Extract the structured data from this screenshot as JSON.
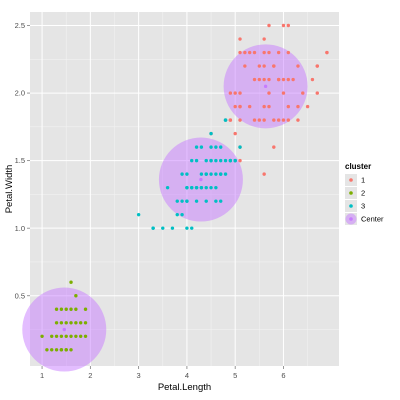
{
  "chart_data": {
    "type": "scatter",
    "xlabel": "Petal.Length",
    "ylabel": "Petal.Width",
    "xlim": [
      0.75,
      7.15
    ],
    "ylim": [
      -0.02,
      2.6
    ],
    "x_ticks": [
      1,
      2,
      3,
      4,
      5,
      6
    ],
    "y_ticks": [
      0.5,
      1.0,
      1.5,
      2.0,
      2.5
    ],
    "x_tick_labels": [
      "1",
      "2",
      "3",
      "4",
      "5",
      "6"
    ],
    "y_tick_labels": [
      "0.5",
      "1.0",
      "1.5",
      "2.0",
      "2.5"
    ],
    "background": "#e5e5e5",
    "gridline_color": "#ffffff",
    "grid": true,
    "legend": {
      "title": "cluster",
      "placement": "right",
      "entries": [
        {
          "label": "1",
          "color": "#f8766d"
        },
        {
          "label": "2",
          "color": "#7cae00"
        },
        {
          "label": "3",
          "color": "#00bfc4"
        },
        {
          "label": "Center",
          "color": "#c77cff"
        }
      ]
    },
    "centers": [
      {
        "x": 1.46,
        "y": 0.25,
        "color": "#c77cff"
      },
      {
        "x": 4.29,
        "y": 1.36,
        "color": "#c77cff"
      },
      {
        "x": 5.63,
        "y": 2.05,
        "color": "#c77cff"
      }
    ],
    "series": [
      {
        "name": "1",
        "color": "#f8766d",
        "points": [
          [
            4.9,
            1.5
          ],
          [
            5.0,
            1.7
          ],
          [
            5.0,
            1.5
          ],
          [
            5.1,
            1.6
          ],
          [
            4.8,
            1.8
          ],
          [
            4.9,
            1.8
          ],
          [
            5.1,
            1.8
          ],
          [
            4.5,
            1.7
          ],
          [
            4.9,
            1.8
          ],
          [
            5.1,
            1.9
          ],
          [
            5.6,
            1.8
          ],
          [
            5.8,
            1.8
          ],
          [
            6.0,
            1.8
          ],
          [
            6.1,
            1.8
          ],
          [
            6.3,
            1.8
          ],
          [
            5.9,
            2.1
          ],
          [
            5.6,
            2.1
          ],
          [
            5.8,
            2.2
          ],
          [
            6.6,
            2.1
          ],
          [
            6.7,
            2.0
          ],
          [
            6.9,
            2.3
          ],
          [
            6.7,
            2.2
          ],
          [
            6.4,
            2.0
          ],
          [
            6.1,
            1.9
          ],
          [
            5.5,
            2.1
          ],
          [
            5.7,
            2.0
          ],
          [
            5.1,
            2.0
          ],
          [
            5.3,
            1.9
          ],
          [
            5.5,
            1.8
          ],
          [
            6.7,
            2.2
          ],
          [
            6.9,
            2.3
          ],
          [
            5.0,
            2.0
          ],
          [
            5.7,
            2.3
          ],
          [
            4.9,
            2.0
          ],
          [
            5.4,
            2.1
          ],
          [
            5.6,
            2.4
          ],
          [
            5.1,
            2.3
          ],
          [
            5.6,
            2.2
          ],
          [
            6.0,
            2.5
          ],
          [
            6.1,
            2.3
          ],
          [
            5.9,
            2.3
          ],
          [
            5.7,
            2.5
          ],
          [
            5.2,
            2.3
          ],
          [
            5.4,
            2.3
          ],
          [
            5.1,
            2.4
          ],
          [
            5.8,
            1.6
          ],
          [
            5.7,
            2.1
          ],
          [
            5.1,
            1.9
          ],
          [
            6.1,
            2.5
          ],
          [
            5.5,
            2.2
          ],
          [
            5.1,
            1.5
          ],
          [
            5.6,
            1.4
          ],
          [
            5.3,
            2.3
          ],
          [
            5.6,
            2.3
          ],
          [
            5.0,
            1.9
          ],
          [
            6.0,
            2.0
          ],
          [
            5.2,
            2.2
          ],
          [
            5.6,
            1.9
          ],
          [
            6.1,
            2.1
          ],
          [
            5.9,
            1.8
          ],
          [
            6.5,
            1.9
          ],
          [
            5.4,
            1.8
          ],
          [
            5.9,
            2.1
          ],
          [
            6.3,
            2.2
          ],
          [
            5.8,
            2.2
          ],
          [
            6.2,
            2.1
          ],
          [
            6.3,
            1.9
          ],
          [
            6.0,
            2.1
          ],
          [
            5.7,
            1.9
          ]
        ]
      },
      {
        "name": "2",
        "color": "#7cae00",
        "points": [
          [
            1.4,
            0.2
          ],
          [
            1.3,
            0.2
          ],
          [
            1.5,
            0.2
          ],
          [
            1.7,
            0.4
          ],
          [
            1.4,
            0.3
          ],
          [
            1.5,
            0.1
          ],
          [
            1.6,
            0.2
          ],
          [
            1.4,
            0.1
          ],
          [
            1.1,
            0.1
          ],
          [
            1.2,
            0.2
          ],
          [
            1.5,
            0.4
          ],
          [
            1.3,
            0.4
          ],
          [
            1.7,
            0.3
          ],
          [
            1.0,
            0.2
          ],
          [
            1.9,
            0.2
          ],
          [
            1.6,
            0.4
          ],
          [
            1.7,
            0.5
          ],
          [
            1.6,
            0.6
          ],
          [
            1.9,
            0.4
          ],
          [
            1.5,
            0.3
          ],
          [
            1.3,
            0.3
          ],
          [
            1.4,
            0.4
          ],
          [
            1.2,
            0.1
          ],
          [
            1.8,
            0.2
          ],
          [
            1.3,
            0.1
          ],
          [
            1.6,
            0.1
          ],
          [
            1.6,
            0.3
          ],
          [
            1.5,
            0.1
          ],
          [
            1.4,
            0.1
          ],
          [
            1.7,
            0.2
          ],
          [
            1.9,
            0.3
          ],
          [
            1.8,
            0.3
          ]
        ]
      },
      {
        "name": "3",
        "color": "#00bfc4",
        "points": [
          [
            4.7,
            1.4
          ],
          [
            4.5,
            1.5
          ],
          [
            4.6,
            1.5
          ],
          [
            4.0,
            1.3
          ],
          [
            4.5,
            1.3
          ],
          [
            4.7,
            1.6
          ],
          [
            3.3,
            1.0
          ],
          [
            4.6,
            1.3
          ],
          [
            3.9,
            1.4
          ],
          [
            3.5,
            1.0
          ],
          [
            4.2,
            1.5
          ],
          [
            4.0,
            1.0
          ],
          [
            4.7,
            1.4
          ],
          [
            3.6,
            1.3
          ],
          [
            4.4,
            1.4
          ],
          [
            4.1,
            1.0
          ],
          [
            4.5,
            1.5
          ],
          [
            3.9,
            1.1
          ],
          [
            4.8,
            1.8
          ],
          [
            4.0,
            1.3
          ],
          [
            4.9,
            1.5
          ],
          [
            4.7,
            1.2
          ],
          [
            4.3,
            1.3
          ],
          [
            4.4,
            1.4
          ],
          [
            4.8,
            1.4
          ],
          [
            4.2,
            1.3
          ],
          [
            3.8,
            1.1
          ],
          [
            3.7,
            1.0
          ],
          [
            3.9,
            1.2
          ],
          [
            5.1,
            1.6
          ],
          [
            4.5,
            1.6
          ],
          [
            4.7,
            1.5
          ],
          [
            4.4,
            1.3
          ],
          [
            4.1,
            1.3
          ],
          [
            4.0,
            1.2
          ],
          [
            4.4,
            1.2
          ],
          [
            4.6,
            1.4
          ],
          [
            4.0,
            1.2
          ],
          [
            3.3,
            1.0
          ],
          [
            4.2,
            1.2
          ],
          [
            4.2,
            1.3
          ],
          [
            4.3,
            1.3
          ],
          [
            3.0,
            1.1
          ],
          [
            4.1,
            1.3
          ],
          [
            4.5,
            1.7
          ],
          [
            4.8,
            1.8
          ],
          [
            4.9,
            1.5
          ],
          [
            4.4,
            1.5
          ],
          [
            5.0,
            1.5
          ],
          [
            4.6,
            1.2
          ],
          [
            4.3,
            1.4
          ],
          [
            4.2,
            1.6
          ],
          [
            4.5,
            1.4
          ],
          [
            3.8,
            1.2
          ],
          [
            4.0,
            1.4
          ],
          [
            4.1,
            1.5
          ],
          [
            4.3,
            1.6
          ],
          [
            4.6,
            1.6
          ],
          [
            4.8,
            1.5
          ],
          [
            5.0,
            1.5
          ]
        ]
      }
    ]
  }
}
